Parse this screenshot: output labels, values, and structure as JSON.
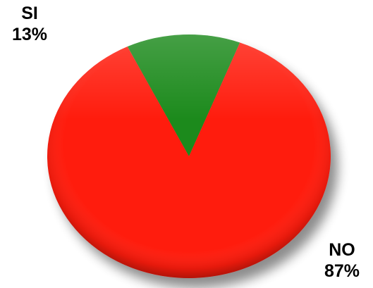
{
  "chart_data": {
    "type": "pie",
    "title": "",
    "categories": [
      "SI",
      "NO"
    ],
    "values": [
      13,
      87
    ],
    "labels": [
      {
        "name": "SI",
        "percent": "13%"
      },
      {
        "name": "NO",
        "percent": "87%"
      }
    ],
    "colors": [
      "#1a8a1a",
      "#ff1a0f"
    ],
    "style": "3d-shaded"
  }
}
